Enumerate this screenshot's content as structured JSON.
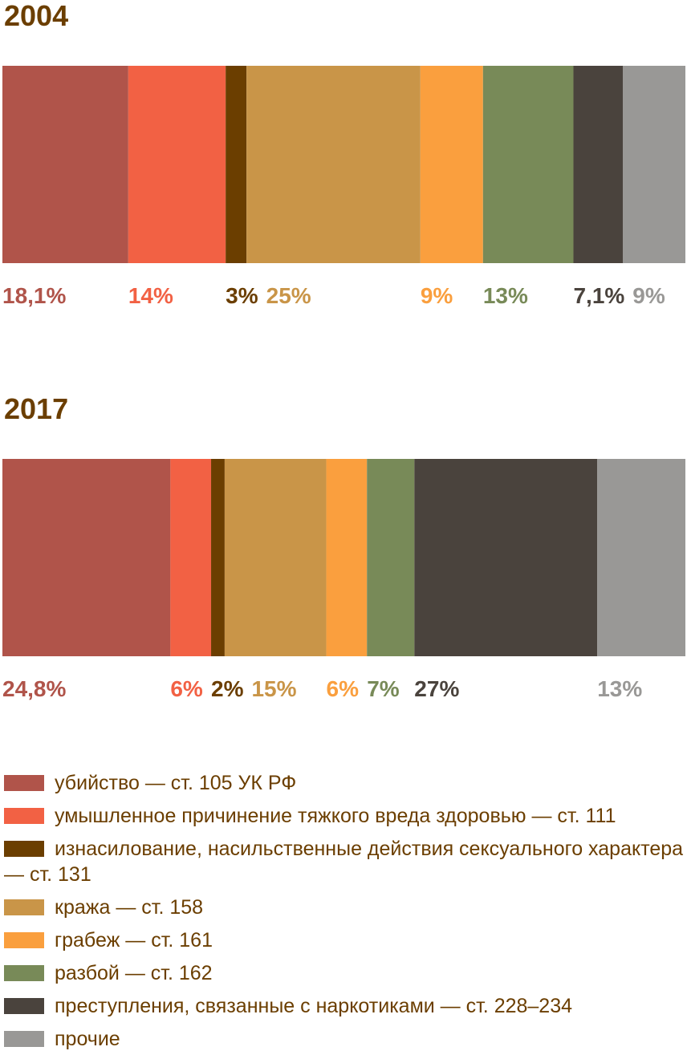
{
  "chart_data": {
    "type": "stacked-bar",
    "categories": [
      "2004",
      "2017"
    ],
    "series": [
      {
        "name": "убийство — ст. 105 УК РФ",
        "color": "#b0544a",
        "values": [
          18.1,
          24.8
        ],
        "value_labels": [
          "18,1%",
          "24,8%"
        ]
      },
      {
        "name": "умышленное причинение тяжкого вреда здоровью — ст. 111",
        "color": "#f26144",
        "values": [
          14,
          6
        ],
        "value_labels": [
          "14%",
          "6%"
        ]
      },
      {
        "name": "изнасилование, насильственные действия сексуального характера — ст. 131",
        "color": "#6b3e00",
        "values": [
          3,
          2
        ],
        "value_labels": [
          "3%",
          "2%"
        ]
      },
      {
        "name": "кража — ст. 158",
        "color": "#c99548",
        "values": [
          25,
          15
        ],
        "value_labels": [
          "25%",
          "15%"
        ]
      },
      {
        "name": "грабеж — ст. 161",
        "color": "#fa9f3e",
        "values": [
          9,
          6
        ],
        "value_labels": [
          "9%",
          "6%"
        ]
      },
      {
        "name": "разбой — ст. 162",
        "color": "#788a58",
        "values": [
          13,
          7
        ],
        "value_labels": [
          "13%",
          "7%"
        ]
      },
      {
        "name": "преступления, связанные с наркотиками — ст. 228–234",
        "color": "#4a433d",
        "values": [
          7.1,
          27
        ],
        "value_labels": [
          "7,1%",
          "27%"
        ]
      },
      {
        "name": "прочие",
        "color": "#999896",
        "values": [
          9,
          13
        ],
        "value_labels": [
          "9%",
          "13%"
        ]
      }
    ]
  }
}
